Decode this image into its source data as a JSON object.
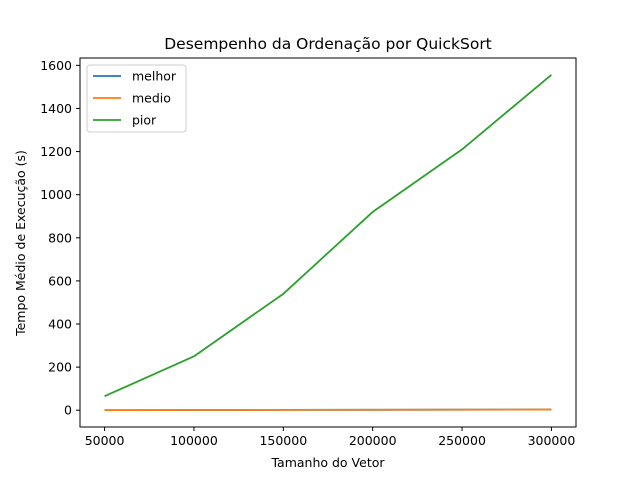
{
  "chart_data": {
    "type": "line",
    "title": "Desempenho da Ordenação por QuickSort",
    "xlabel": "Tamanho do Vetor",
    "ylabel": "Tempo Médio de Execução (s)",
    "x": [
      50000,
      100000,
      150000,
      200000,
      250000,
      300000
    ],
    "x_ticks": [
      "50000",
      "100000",
      "150000",
      "200000",
      "250000",
      "300000"
    ],
    "y_ticks": [
      "0",
      "200",
      "400",
      "600",
      "800",
      "1000",
      "1200",
      "1400",
      "1600"
    ],
    "xlim": [
      36250,
      313750
    ],
    "ylim": [
      -77.8,
      1634.1
    ],
    "grid": false,
    "legend_position": "upper-left",
    "series": [
      {
        "name": "melhor",
        "color": "#1f77b4",
        "values": [
          0.5,
          1,
          1.5,
          2,
          2.5,
          3
        ]
      },
      {
        "name": "medio",
        "color": "#ff7f0e",
        "values": [
          0.5,
          1,
          1.6,
          2.1,
          2.7,
          3.2
        ]
      },
      {
        "name": "pior",
        "color": "#2ca02c",
        "values": [
          65,
          250,
          540,
          920,
          1210,
          1556
        ]
      }
    ]
  }
}
